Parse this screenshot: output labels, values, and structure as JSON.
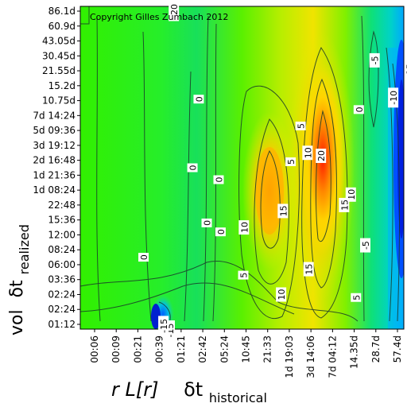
{
  "chart_data": {
    "type": "heatmap",
    "copyright": "Copyright Gilles Zumbach 2012",
    "ylabel_prefix": "vol",
    "ylabel_symbol": "δt",
    "ylabel_sub": "realized",
    "xlabel_prefix": "r L[r]",
    "xlabel_symbol": "δt",
    "xlabel_sub": "historical",
    "y_ticks": [
      "86.1d",
      "60.9d",
      "43.05d",
      "30.45d",
      "21.55d",
      "15.2d",
      "10.75d",
      "7d 14:24",
      "5d 09:36",
      "3d 19:12",
      "2d 16:48",
      "1d 21:36",
      "1d 08:24",
      "22:48",
      "15:36",
      "12:00",
      "08:24",
      "06:00",
      "03:36",
      "02:24",
      "02:24",
      "01:12"
    ],
    "x_ticks": [
      "00:06",
      "00:09",
      "00:21",
      "00:39",
      "01:21",
      "02:42",
      "05:24",
      "10:45",
      "21:33",
      "1d 19:03",
      "3d 14:06",
      "7d 04:12",
      "14.35d",
      "28.7d",
      "57.4d"
    ],
    "contour_labels": [
      {
        "text": "-20",
        "x": 3.68,
        "y": 0.0
      },
      {
        "text": "0",
        "x": 4.83,
        "y": 5.9
      },
      {
        "text": "0",
        "x": 4.54,
        "y": 10.5
      },
      {
        "text": "0",
        "x": 5.75,
        "y": 11.3
      },
      {
        "text": "0",
        "x": 5.2,
        "y": 14.2
      },
      {
        "text": "0",
        "x": 5.84,
        "y": 14.8
      },
      {
        "text": "0",
        "x": 2.28,
        "y": 16.5
      },
      {
        "text": "0",
        "x": 12.23,
        "y": 6.6
      },
      {
        "text": "-5",
        "x": 12.96,
        "y": 3.3
      },
      {
        "text": "-10",
        "x": 13.82,
        "y": 5.8
      },
      {
        "text": "-15",
        "x": 14.57,
        "y": 4.0
      },
      {
        "text": "5",
        "x": 9.54,
        "y": 7.7
      },
      {
        "text": "5",
        "x": 9.08,
        "y": 10.1
      },
      {
        "text": "5",
        "x": 6.89,
        "y": 17.7
      },
      {
        "text": "5",
        "x": 12.1,
        "y": 19.2
      },
      {
        "text": "10",
        "x": 9.86,
        "y": 9.5
      },
      {
        "text": "10",
        "x": 6.92,
        "y": 14.5
      },
      {
        "text": "10",
        "x": 8.64,
        "y": 19.0
      },
      {
        "text": "10",
        "x": 11.86,
        "y": 12.3
      },
      {
        "text": "15",
        "x": 8.72,
        "y": 13.4
      },
      {
        "text": "15",
        "x": 9.91,
        "y": 17.3
      },
      {
        "text": "15",
        "x": 11.55,
        "y": 13.0
      },
      {
        "text": "20",
        "x": 10.48,
        "y": 9.7
      },
      {
        "text": "-5",
        "x": 12.53,
        "y": 15.7
      },
      {
        "text": "-15",
        "x": 3.49,
        "y": 21.4
      },
      {
        "text": "-15",
        "x": 3.2,
        "y": 21.1
      }
    ]
  }
}
